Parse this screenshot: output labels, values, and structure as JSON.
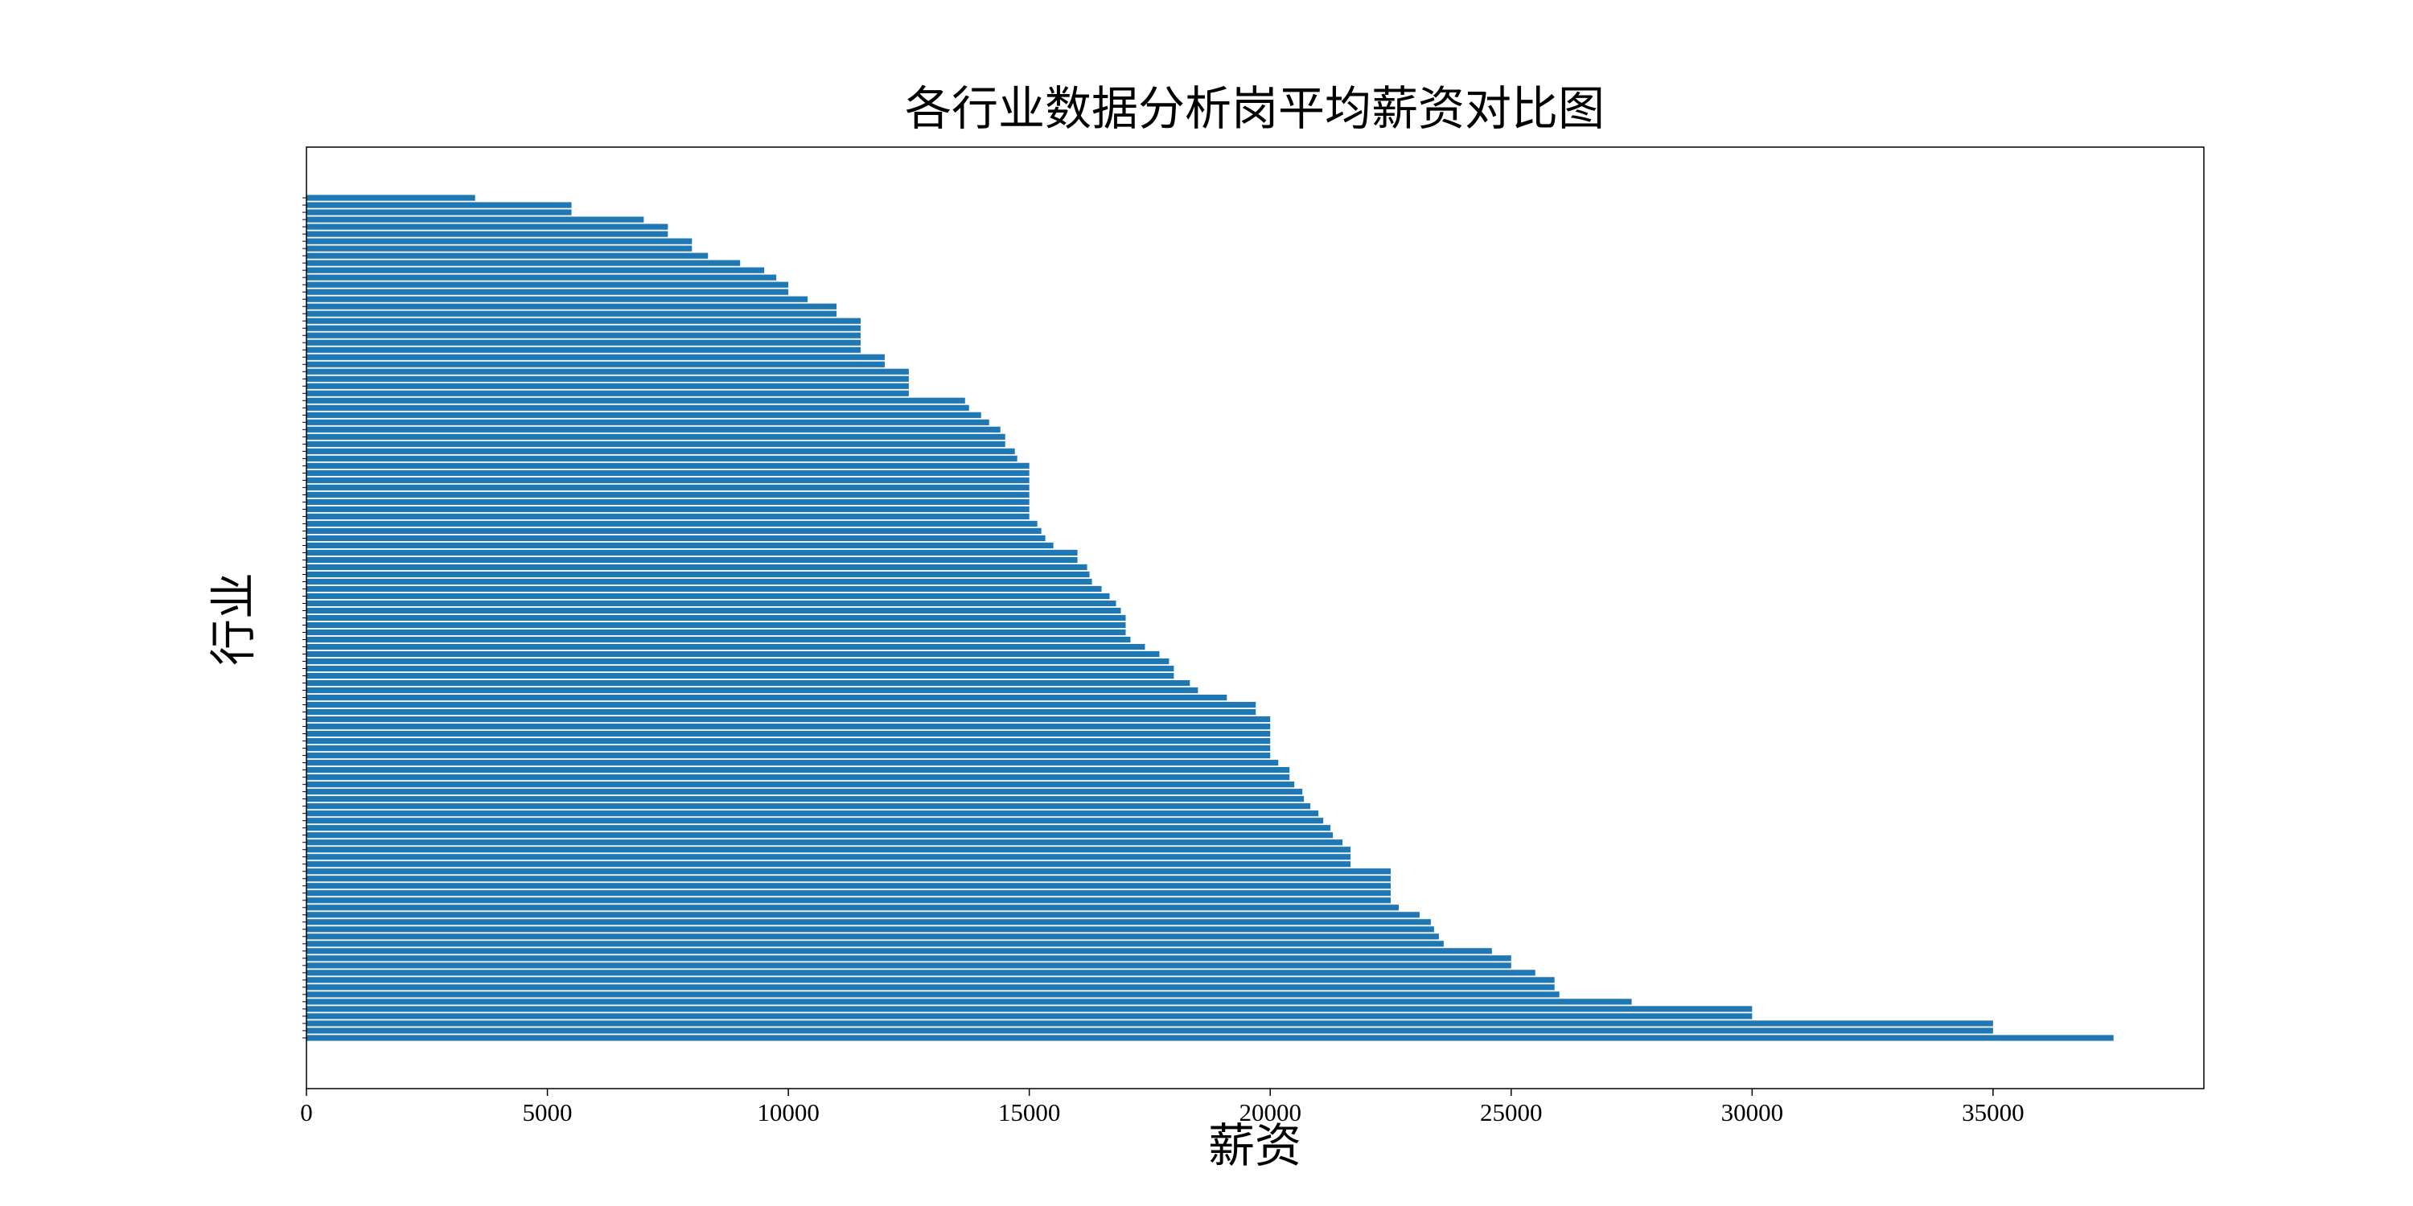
{
  "chart_data": {
    "type": "barh",
    "title": "各行业数据分析岗平均薪资对比图",
    "x_label": "薪资",
    "y_label": "行业",
    "color": "#1f77b4",
    "categories": [
      null,
      null,
      null,
      null,
      null,
      null,
      null,
      null,
      null,
      null,
      null,
      null,
      null,
      null,
      null,
      null,
      null,
      null,
      null,
      null,
      null,
      null,
      null,
      null,
      null,
      null,
      null,
      null,
      null,
      null,
      null,
      null,
      null,
      null,
      null,
      null,
      null,
      null,
      null,
      null,
      null,
      null,
      null,
      null,
      null,
      null,
      null,
      null,
      null,
      null,
      null,
      null,
      null,
      null,
      null,
      null,
      null,
      null,
      null,
      null,
      null,
      null,
      null,
      null,
      null,
      null,
      null,
      null,
      null,
      null,
      null,
      null,
      null,
      null,
      null,
      null,
      null,
      null,
      null,
      null,
      null,
      null,
      null,
      null,
      null,
      null,
      null,
      null,
      null,
      null,
      null,
      null,
      null,
      null,
      null,
      null,
      null,
      null,
      null,
      null,
      null,
      null,
      null,
      null,
      null,
      null,
      null,
      null,
      null,
      null,
      null,
      null,
      null,
      null,
      null,
      null,
      null
    ],
    "values": [
      37500,
      35000,
      35000,
      30000,
      30000,
      27500,
      26000,
      25900,
      25900,
      25500,
      25000,
      25000,
      24600,
      23600,
      23500,
      23400,
      23333,
      23100,
      22667,
      22500,
      22500,
      22500,
      22500,
      22500,
      21667,
      21667,
      21667,
      21500,
      21300,
      21250,
      21100,
      21000,
      20833,
      20700,
      20667,
      20500,
      20400,
      20400,
      20167,
      20000,
      20000,
      20000,
      20000,
      20000,
      20000,
      19700,
      19700,
      19100,
      18500,
      18333,
      18000,
      18000,
      17900,
      17700,
      17400,
      17100,
      17000,
      17000,
      17000,
      16900,
      16800,
      16667,
      16500,
      16300,
      16250,
      16200,
      16000,
      16000,
      15500,
      15333,
      15250,
      15167,
      15000,
      15000,
      15000,
      15000,
      15000,
      15000,
      15000,
      15000,
      14750,
      14700,
      14500,
      14500,
      14400,
      14167,
      14000,
      13750,
      13667,
      12500,
      12500,
      12500,
      12500,
      12000,
      12000,
      11500,
      11500,
      11500,
      11500,
      11500,
      11000,
      11000,
      10400,
      10000,
      10000,
      9750,
      9500,
      9000,
      8333,
      8000,
      8000,
      7500,
      7500,
      7000,
      5500,
      5500,
      3500
    ],
    "xlim": [
      0,
      39375
    ],
    "xticks": [
      0,
      5000,
      10000,
      15000,
      20000,
      25000,
      30000,
      35000
    ]
  }
}
